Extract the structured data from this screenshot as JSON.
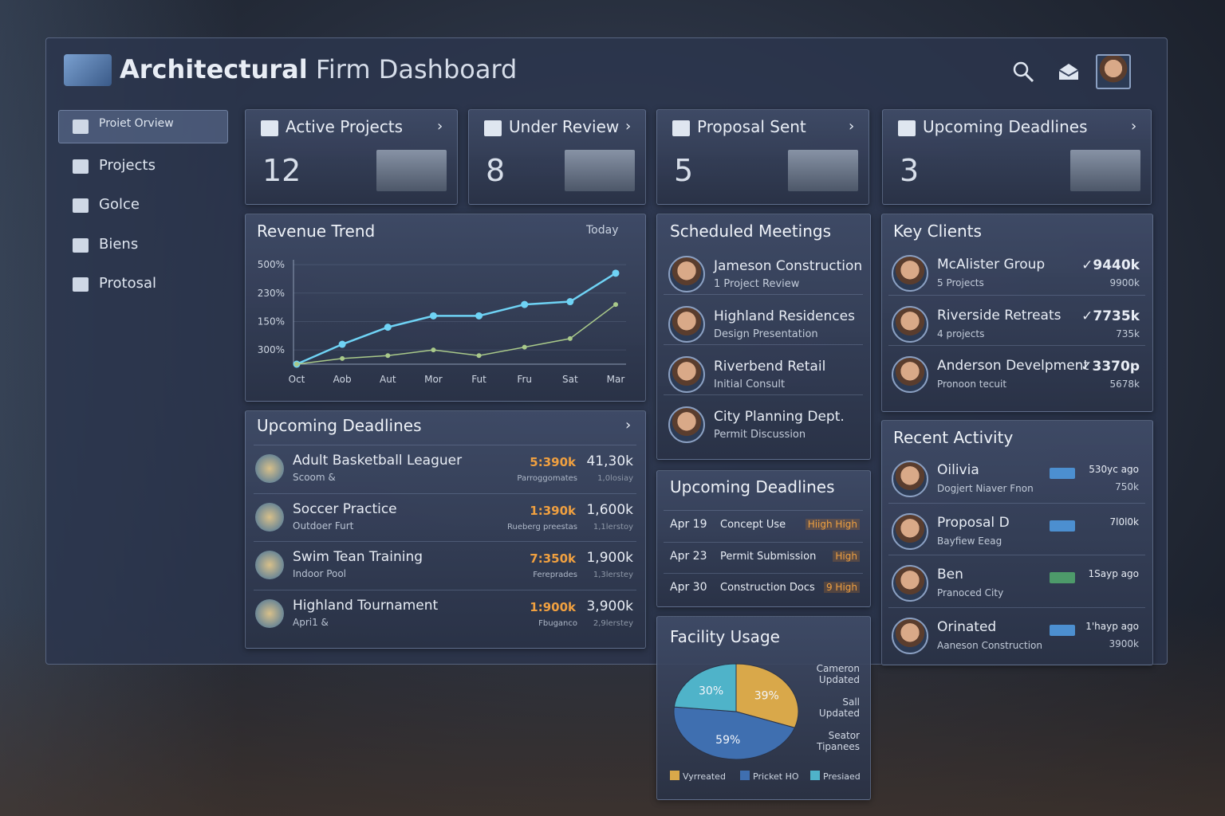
{
  "header": {
    "title_bold": "Architectural",
    "title_rest": "Firm Dashboard"
  },
  "sidebar": {
    "items": [
      "Proiet Orview",
      "Projects",
      "Golce",
      "Biens",
      "Protosal"
    ]
  },
  "stats": [
    {
      "label": "Active Projects",
      "value": "12"
    },
    {
      "label": "Under Review",
      "value": "8"
    },
    {
      "label": "Proposal Sent",
      "value": "5"
    },
    {
      "label": "Upcoming Deadlines",
      "value": "3"
    }
  ],
  "revenue": {
    "title": "Revenue Trend",
    "action": "Today"
  },
  "deadlines_list": {
    "title": "Upcoming Deadlines",
    "rows": [
      {
        "name": "Adult Basketball Leaguer",
        "sub": "Scoom &",
        "amount": "5:390k",
        "total": "41,30k",
        "note": "Parroggomates",
        "note2": "1,0losiay"
      },
      {
        "name": "Soccer Practice",
        "sub": "Outdoer Furt",
        "amount": "1:390k",
        "total": "1,600k",
        "note": "Rueberg preestas",
        "note2": "1,1lerstoy"
      },
      {
        "name": "Swim Tean Training",
        "sub": "Indoor Pool",
        "amount": "7:350k",
        "total": "1,900k",
        "note": "Fereprades",
        "note2": "1,3lerstey"
      },
      {
        "name": "Highland Tournament",
        "sub": "Apri1 &",
        "amount": "1:900k",
        "total": "3,900k",
        "note": "Fbuganco",
        "note2": "2,9lerstey"
      }
    ]
  },
  "meetings": {
    "title": "Scheduled Meetings",
    "rows": [
      {
        "name": "Jameson Construction",
        "sub": "1 Project Review"
      },
      {
        "name": "Highland Residences",
        "sub": "Design Presentation"
      },
      {
        "name": "Riverbend Retail",
        "sub": "Initial Consult"
      },
      {
        "name": "City Planning Dept.",
        "sub": "Permit Discussion"
      }
    ]
  },
  "deadlines_small": {
    "title": "Upcoming Deadlines",
    "rows": [
      {
        "date": "Apr 19",
        "task": "Concept Use",
        "priority": "Hiigh High"
      },
      {
        "date": "Apr 23",
        "task": "Permit Submission",
        "priority": "High"
      },
      {
        "date": "Apr 30",
        "task": "Construction Docs",
        "priority": "9 High"
      }
    ]
  },
  "facility": {
    "side_labels": [
      "Cameron Updated",
      "Sall Updated",
      "Seator Tipanees"
    ]
  },
  "clients": {
    "title": "Key Clients",
    "rows": [
      {
        "name": "McAlister Group",
        "sub": "5 Projects",
        "value": "✓9440k",
        "value2": "9900k"
      },
      {
        "name": "Riverside Retreats",
        "sub": "4 projects",
        "value": "✓7735k",
        "value2": "735k"
      },
      {
        "name": "Anderson Develpment",
        "sub": "Pronoon tecuit",
        "value": "✓3370p",
        "value2": "5678k"
      }
    ]
  },
  "activity": {
    "title": "Recent Activity",
    "rows": [
      {
        "name": "Oilivia",
        "sub": "Dogjert Niaver Fnon",
        "time": "530yc ago",
        "value": "750k"
      },
      {
        "name": "Proposal D",
        "sub": "Bayfiew Eeag",
        "time": "7l0l0k",
        "value": ""
      },
      {
        "name": "Ben",
        "sub": "Pranoced City",
        "time": "1Sayp ago",
        "value": ""
      },
      {
        "name": "Orinated",
        "sub": "Aaneson Construction",
        "time": "1'hayp ago",
        "value": "3900k"
      }
    ]
  },
  "chart_data": [
    {
      "type": "line",
      "categories": [
        "Oct",
        "Aob",
        "Aut",
        "Mor",
        "Fut",
        "Fru",
        "Sat",
        "Mar"
      ],
      "ylim": [
        0.5,
        4.2
      ],
      "yticks": [
        {
          "value": 4,
          "label": "500%"
        },
        {
          "value": 3,
          "label": "230%"
        },
        {
          "value": 2,
          "label": "150%"
        },
        {
          "value": 1,
          "label": "300%"
        }
      ],
      "series": [
        {
          "color": "#6fd3f5",
          "values": [
            0.5,
            1.2,
            1.8,
            2.2,
            2.2,
            2.6,
            2.7,
            3.7
          ]
        },
        {
          "color": "#a9c98a",
          "values": [
            0.5,
            0.7,
            0.8,
            1.0,
            0.8,
            1.1,
            1.4,
            2.6
          ]
        }
      ]
    },
    {
      "type": "pie",
      "title": "Facility Usage",
      "categories": [
        "Vyrreated",
        "Pricket HO",
        "Presiaed"
      ],
      "values": [
        39,
        59,
        30
      ],
      "value_labels": [
        "39%",
        "59%",
        "30%"
      ],
      "colors": [
        "#d9a84a",
        "#3f6fb0",
        "#4fb3c9"
      ]
    }
  ]
}
